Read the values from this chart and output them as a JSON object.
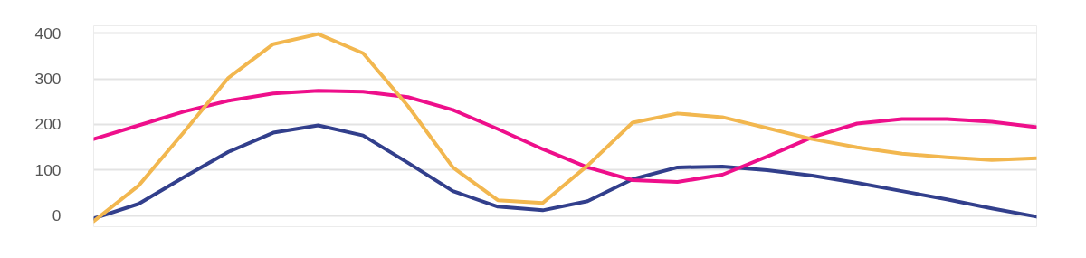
{
  "chart_data": {
    "type": "line",
    "categories": [
      null,
      null,
      null,
      null,
      null,
      null,
      null,
      null,
      null,
      null,
      null,
      null,
      null,
      null,
      null,
      null,
      null,
      null,
      null,
      null,
      null,
      null
    ],
    "series": [
      {
        "color": "#323f8c",
        "values": [
          -6,
          26,
          84,
          140,
          182,
          198,
          176,
          116,
          54,
          20,
          12,
          32,
          80,
          106,
          108,
          100,
          88,
          72,
          54,
          36,
          16,
          -2
        ]
      },
      {
        "color": "#ee0f8b",
        "values": [
          168,
          198,
          228,
          252,
          268,
          274,
          272,
          260,
          232,
          190,
          146,
          106,
          78,
          74,
          90,
          130,
          172,
          202,
          212,
          212,
          206,
          194
        ]
      },
      {
        "color": "#f2b74f",
        "values": [
          -12,
          66,
          182,
          302,
          376,
          398,
          356,
          240,
          106,
          34,
          28,
          110,
          204,
          224,
          216,
          192,
          168,
          150,
          136,
          128,
          122,
          126
        ]
      }
    ],
    "ylim": [
      -24,
      416
    ],
    "yticks": [
      0,
      100,
      200,
      300,
      400
    ],
    "grid": "y",
    "tick_labels": "y",
    "marker": "none",
    "line_style": "solid"
  }
}
